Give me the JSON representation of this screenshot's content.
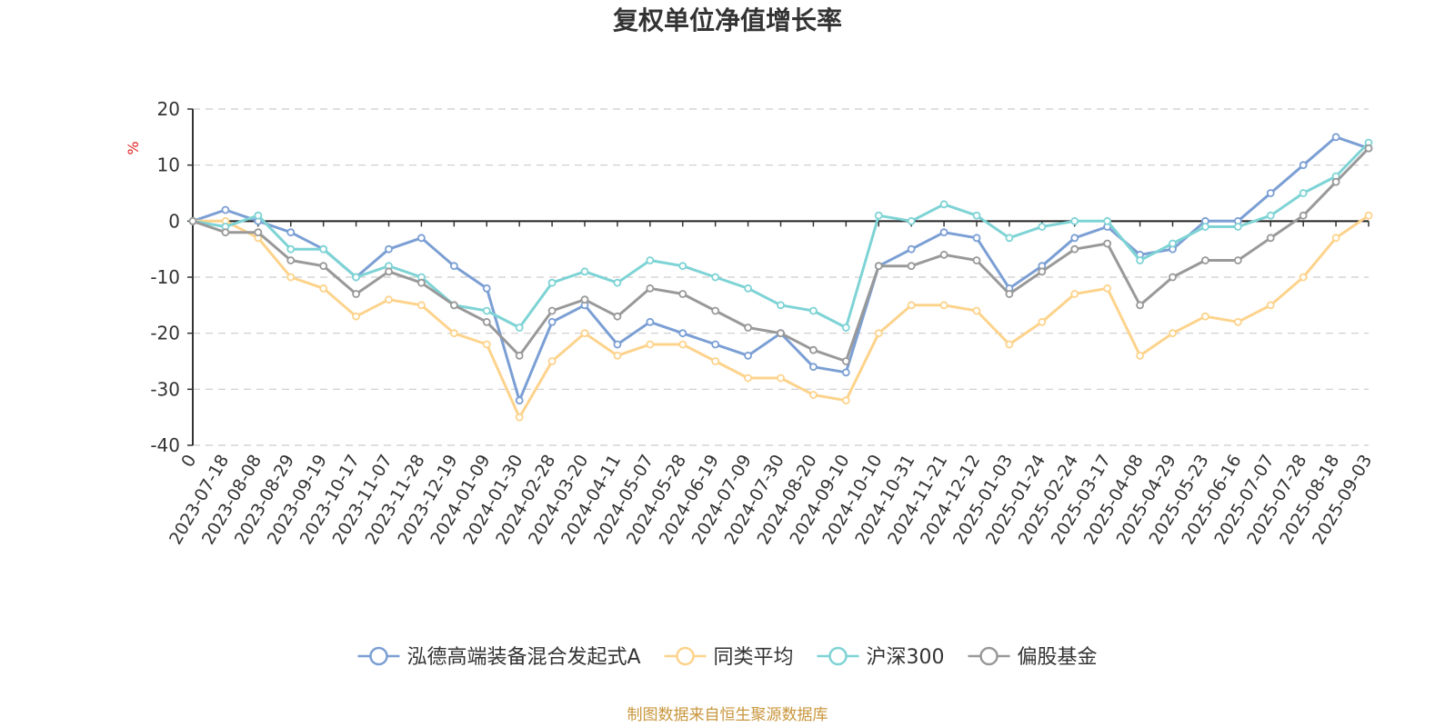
{
  "chart_data": {
    "type": "line",
    "title": "复权单位净值增长率",
    "ylabel": "%",
    "ylim": [
      -40,
      20
    ],
    "yticks": [
      20,
      10,
      0,
      -10,
      -20,
      -30,
      -40
    ],
    "grid": true,
    "legend_position": "bottom",
    "x_tick_labels": [
      "0",
      "2023-07-18",
      "2023-08-08",
      "2023-08-29",
      "2023-09-19",
      "2023-10-17",
      "2023-11-07",
      "2023-11-28",
      "2023-12-19",
      "2024-01-09",
      "2024-01-30",
      "2024-02-28",
      "2024-03-20",
      "2024-04-11",
      "2024-05-07",
      "2024-05-28",
      "2024-06-19",
      "2024-07-09",
      "2024-07-30",
      "2024-08-20",
      "2024-09-10",
      "2024-10-10",
      "2024-10-31",
      "2024-11-21",
      "2024-12-12",
      "2025-01-03",
      "2025-01-24",
      "2025-02-24",
      "2025-03-17",
      "2025-04-08",
      "2025-04-29",
      "2025-05-23",
      "2025-06-16",
      "2025-07-07",
      "2025-07-28",
      "2025-08-18",
      "2025-09-03"
    ],
    "series": [
      {
        "name": "泓德高端装备混合发起式A",
        "color": "#7b9fd4",
        "values": [
          0,
          2,
          0,
          -2,
          -5,
          -10,
          -5,
          -3,
          -8,
          -12,
          -32,
          -18,
          -15,
          -22,
          -18,
          -20,
          -22,
          -24,
          -20,
          -26,
          -27,
          -8,
          -5,
          -2,
          -3,
          -12,
          -8,
          -3,
          -1,
          -6,
          -5,
          0,
          0,
          5,
          10,
          15,
          13
        ]
      },
      {
        "name": "同类平均",
        "color": "#fdd38c",
        "values": [
          0,
          0,
          -3,
          -10,
          -12,
          -17,
          -14,
          -15,
          -20,
          -22,
          -35,
          -25,
          -20,
          -24,
          -22,
          -22,
          -25,
          -28,
          -28,
          -31,
          -32,
          -20,
          -15,
          -15,
          -16,
          -22,
          -18,
          -13,
          -12,
          -24,
          -20,
          -17,
          -18,
          -15,
          -10,
          -3,
          1
        ]
      },
      {
        "name": "沪深300",
        "color": "#7ed3d5",
        "values": [
          0,
          -1,
          1,
          -5,
          -5,
          -10,
          -8,
          -10,
          -15,
          -16,
          -19,
          -11,
          -9,
          -11,
          -7,
          -8,
          -10,
          -12,
          -15,
          -16,
          -19,
          1,
          0,
          3,
          1,
          -3,
          -1,
          0,
          0,
          -7,
          -4,
          -1,
          -1,
          1,
          5,
          8,
          14
        ]
      },
      {
        "name": "偏股基金",
        "color": "#999999",
        "values": [
          0,
          -2,
          -2,
          -7,
          -8,
          -13,
          -9,
          -11,
          -15,
          -18,
          -24,
          -16,
          -14,
          -17,
          -12,
          -13,
          -16,
          -19,
          -20,
          -23,
          -25,
          -8,
          -8,
          -6,
          -7,
          -13,
          -9,
          -5,
          -4,
          -15,
          -10,
          -7,
          -7,
          -3,
          1,
          7,
          13
        ]
      }
    ]
  },
  "source_note": "制图数据来自恒生聚源数据库"
}
